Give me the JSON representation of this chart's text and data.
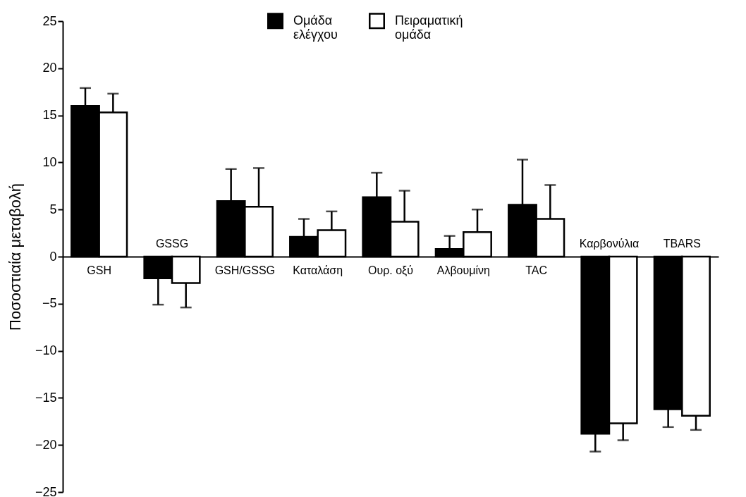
{
  "chart_data": {
    "type": "bar",
    "ylabel": "Ποσοστιαία μεταβολή",
    "categories": [
      "GSH",
      "GSSG",
      "GSH/GSSG",
      "Καταλάση",
      "Ουρ. οξύ",
      "Αλβουμίνη",
      "TAC",
      "Καρβονύλια",
      "TBARS"
    ],
    "series": [
      {
        "name": "Ομάδα ελέγχου",
        "color": "#000000",
        "values": [
          16.0,
          -2.3,
          5.9,
          2.1,
          6.3,
          0.8,
          5.5,
          -18.8,
          -16.2
        ],
        "errors": [
          [
            16.0,
            17.9
          ],
          [
            -5.1,
            -2.3
          ],
          [
            5.9,
            9.3
          ],
          [
            2.1,
            4.0
          ],
          [
            6.3,
            8.9
          ],
          [
            0.8,
            2.2
          ],
          [
            5.5,
            10.3
          ],
          [
            -20.7,
            -18.8
          ],
          [
            -18.1,
            -16.2
          ]
        ]
      },
      {
        "name": "Πειραματική ομάδα",
        "color": "#ffffff",
        "values": [
          15.3,
          -2.8,
          5.3,
          2.8,
          3.7,
          2.6,
          4.0,
          -17.7,
          -16.9
        ],
        "errors": [
          [
            15.3,
            17.3
          ],
          [
            -5.4,
            -2.8
          ],
          [
            5.3,
            9.4
          ],
          [
            2.8,
            4.8
          ],
          [
            3.7,
            7.0
          ],
          [
            2.6,
            5.0
          ],
          [
            4.0,
            7.6
          ],
          [
            -19.5,
            -17.7
          ],
          [
            -18.4,
            -16.9
          ]
        ]
      }
    ],
    "ylim": [
      -25,
      25
    ],
    "yticks": [
      -25,
      -20,
      -15,
      -10,
      -5,
      0,
      5,
      10,
      15,
      20,
      25
    ],
    "grid": false,
    "legend": "top"
  }
}
